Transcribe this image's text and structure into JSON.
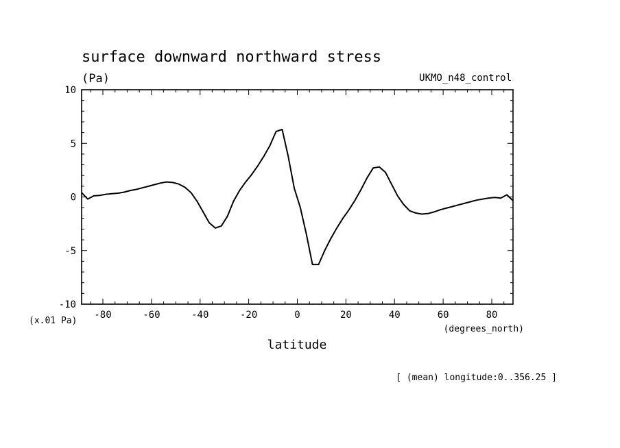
{
  "title": "surface downward northward stress",
  "units_label": "(Pa)",
  "model_label": "UKMO_n48_control",
  "scale_label": "(x.01 Pa)",
  "x_units_label": "(degrees_north)",
  "footnote": "[ (mean) longitude:0..356.25 ]",
  "chart_data": {
    "type": "line",
    "title": "surface downward northward stress",
    "xlabel": "latitude",
    "ylabel": "(Pa)",
    "xlim": [
      -88.75,
      88.75
    ],
    "ylim": [
      -10,
      10
    ],
    "x_ticks": [
      -80,
      -60,
      -40,
      -20,
      0,
      20,
      40,
      60,
      80
    ],
    "x_tick_labels": [
      "-80",
      "-60",
      "-40",
      "-20",
      "0",
      "20",
      "40",
      "60",
      "80"
    ],
    "y_ticks": [
      -10,
      -5,
      0,
      5,
      10
    ],
    "y_tick_labels": [
      "-10",
      "-5",
      "0",
      "5",
      "10"
    ],
    "grid": false,
    "series": [
      {
        "name": "",
        "color": "#000000",
        "x": [
          -88.75,
          -86.25,
          -83.75,
          -81.25,
          -78.75,
          -76.25,
          -73.75,
          -71.25,
          -68.75,
          -66.25,
          -63.75,
          -61.25,
          -58.75,
          -56.25,
          -53.75,
          -51.25,
          -48.75,
          -46.25,
          -43.75,
          -41.25,
          -38.75,
          -36.25,
          -33.75,
          -31.25,
          -28.75,
          -26.25,
          -23.75,
          -21.25,
          -18.75,
          -16.25,
          -13.75,
          -11.25,
          -8.75,
          -6.25,
          -3.75,
          -1.25,
          1.25,
          3.75,
          6.25,
          8.75,
          11.25,
          13.75,
          16.25,
          18.75,
          21.25,
          23.75,
          26.25,
          28.75,
          31.25,
          33.75,
          36.25,
          38.75,
          41.25,
          43.75,
          46.25,
          48.75,
          51.25,
          53.75,
          56.25,
          58.75,
          61.25,
          63.75,
          66.25,
          68.75,
          71.25,
          73.75,
          76.25,
          78.75,
          81.25,
          83.75,
          86.25,
          88.75
        ],
        "y": [
          0.4,
          -0.2,
          0.1,
          0.15,
          0.25,
          0.3,
          0.35,
          0.45,
          0.6,
          0.7,
          0.85,
          1.0,
          1.15,
          1.3,
          1.4,
          1.35,
          1.2,
          0.9,
          0.4,
          -0.4,
          -1.4,
          -2.4,
          -2.9,
          -2.7,
          -1.8,
          -0.4,
          0.6,
          1.4,
          2.1,
          2.9,
          3.8,
          4.8,
          6.1,
          6.3,
          3.8,
          0.8,
          -1.0,
          -3.5,
          -6.3,
          -6.3,
          -5.0,
          -3.9,
          -2.9,
          -2.0,
          -1.2,
          -0.3,
          0.7,
          1.8,
          2.7,
          2.8,
          2.3,
          1.2,
          0.1,
          -0.7,
          -1.3,
          -1.5,
          -1.6,
          -1.55,
          -1.4,
          -1.2,
          -1.05,
          -0.9,
          -0.75,
          -0.6,
          -0.45,
          -0.3,
          -0.2,
          -0.1,
          -0.05,
          -0.1,
          0.2,
          -0.35
        ]
      }
    ]
  }
}
